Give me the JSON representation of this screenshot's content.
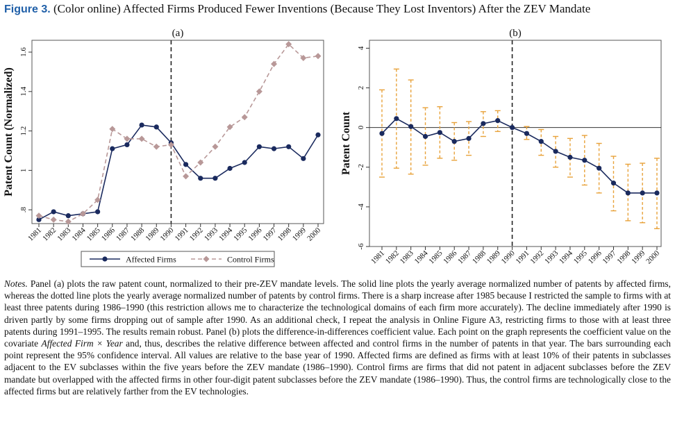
{
  "figure": {
    "number": "Figure 3.",
    "title": "(Color online) Affected Firms Produced Fewer Inventions (Because They Lost Inventors) After the ZEV Mandate"
  },
  "colors": {
    "affected": "#1a2a5e",
    "control": "#b89898",
    "coef": "#1a2a5e",
    "ci": "#e8a23a",
    "vline": "#222222",
    "frame": "#555555",
    "figure_number": "#1f5fa8"
  },
  "chart_data": [
    {
      "panel": "(a)",
      "type": "line",
      "ylabel": "Patent Count (Normalized)",
      "xlabel": "",
      "x": [
        "1981",
        "1982",
        "1983",
        "1984",
        "1985",
        "1986",
        "1987",
        "1988",
        "1989",
        "1990",
        "1991",
        "1992",
        "1993",
        "1994",
        "1995",
        "1996",
        "1997",
        "1998",
        "1999",
        "2000"
      ],
      "ylim": [
        0.73,
        1.66
      ],
      "yticks": [
        0.8,
        1,
        1.2,
        1.4,
        1.6
      ],
      "ytick_labels": [
        ".8",
        "1",
        "1.2",
        "1.4",
        "1.6"
      ],
      "vline_at": "1990",
      "grid": false,
      "legend_position": "bottom",
      "series": [
        {
          "name": "Affected Firms",
          "style": "solid-circle",
          "values": [
            0.75,
            0.79,
            0.77,
            0.78,
            0.79,
            1.11,
            1.13,
            1.23,
            1.22,
            1.14,
            1.03,
            0.96,
            0.96,
            1.01,
            1.04,
            1.12,
            1.11,
            1.12,
            1.06,
            1.18
          ]
        },
        {
          "name": "Control Firms",
          "style": "dashed-diamond",
          "values": [
            0.77,
            0.75,
            0.74,
            0.78,
            0.85,
            1.21,
            1.16,
            1.16,
            1.12,
            1.13,
            0.97,
            1.04,
            1.12,
            1.22,
            1.27,
            1.4,
            1.54,
            1.64,
            1.57,
            1.58
          ]
        }
      ]
    },
    {
      "panel": "(b)",
      "type": "line",
      "ylabel": "Patent Count",
      "xlabel": "",
      "x": [
        "1981",
        "1982",
        "1983",
        "1984",
        "1985",
        "1986",
        "1987",
        "1988",
        "1989",
        "1990",
        "1991",
        "1992",
        "1993",
        "1994",
        "1995",
        "1996",
        "1997",
        "1998",
        "1999",
        "2000"
      ],
      "ylim": [
        -6,
        4.4
      ],
      "yticks": [
        -6,
        -4,
        -2,
        0,
        2,
        4
      ],
      "ytick_labels": [
        "-6",
        "-4",
        "-2",
        "0",
        "2",
        "4"
      ],
      "hline_at": 0,
      "vline_at": "1990",
      "grid": false,
      "series": [
        {
          "name": "",
          "style": "solid-circle-with-ci",
          "values": [
            -0.3,
            0.45,
            0.05,
            -0.45,
            -0.25,
            -0.7,
            -0.55,
            0.2,
            0.35,
            0.0,
            -0.3,
            -0.7,
            -1.2,
            -1.5,
            -1.65,
            -2.05,
            -2.8,
            -3.3,
            -3.3,
            -3.3
          ],
          "ci_low": [
            -2.5,
            -2.05,
            -2.35,
            -1.9,
            -1.55,
            -1.65,
            -1.4,
            -0.45,
            -0.2,
            0.0,
            -0.6,
            -1.4,
            -2.0,
            -2.5,
            -2.9,
            -3.3,
            -4.2,
            -4.7,
            -4.8,
            -5.1
          ],
          "ci_high": [
            1.9,
            2.95,
            2.4,
            1.0,
            1.05,
            0.25,
            0.3,
            0.8,
            0.85,
            0.0,
            0.05,
            -0.1,
            -0.45,
            -0.55,
            -0.4,
            -0.8,
            -1.45,
            -1.85,
            -1.8,
            -1.55
          ]
        }
      ]
    }
  ],
  "notes": {
    "lead": "Notes.",
    "text": "Panel (a) plots the raw patent count, normalized to their pre-ZEV mandate levels. The solid line plots the yearly average normalized number of patents by affected firms, whereas the dotted line plots the yearly average normalized number of patents by control firms. There is a sharp increase after 1985 because I restricted the sample to firms with at least three patents during 1986–1990 (this restriction allows me to characterize the technological domains of each firm more accurately). The decline immediately after 1990 is driven partly by some firms dropping out of sample after 1990. As an additional check, I repeat the analysis in Online Figure A3, restricting firms to those with at least three patents during 1991–1995. The results remain robust. Panel (b) plots the difference-in-differences coefficient value. Each point on the graph represents the coefficient value on the covariate",
    "covariate": "Affected Firm × Year",
    "text2": "and, thus, describes the relative difference between affected and control firms in the number of patents in that year. The bars surrounding each point represent the 95% confidence interval. All values are relative to the base year of 1990. Affected firms are defined as firms with at least 10% of their patents in subclasses adjacent to the EV subclasses within the five years before the ZEV mandate (1986–1990). Control firms are firms that did not patent in adjacent subclasses before the ZEV mandate but overlapped with the affected firms in other four-digit patent subclasses before the ZEV mandate (1986–1990). Thus, the control firms are technologically close to the affected firms but are relatively farther from the EV technologies."
  }
}
